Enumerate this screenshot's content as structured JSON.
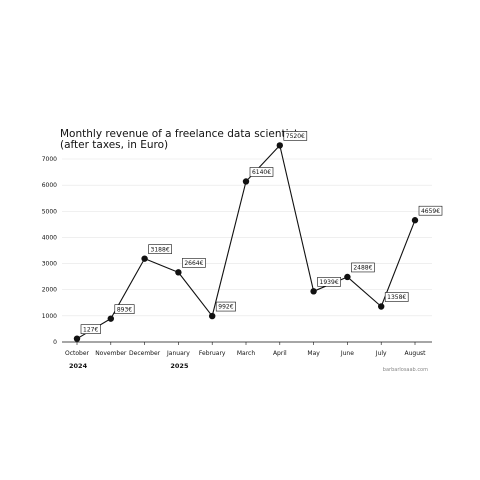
{
  "chart_data": {
    "type": "line",
    "title_lines": [
      "Monthly revenue of a freelance data scientist",
      "(after taxes, in Euro)"
    ],
    "categories": [
      "October",
      "November",
      "December",
      "January",
      "February",
      "March",
      "April",
      "May",
      "June",
      "July",
      "August"
    ],
    "values": [
      127,
      893,
      3188,
      2664,
      992,
      6140,
      7520,
      1939,
      2488,
      1358,
      4659
    ],
    "data_labels": [
      "127€",
      "893€",
      "3188€",
      "2664€",
      "992€",
      "6140€",
      "7520€",
      "1939€",
      "2488€",
      "1358€",
      "4659€"
    ],
    "year_labels": [
      {
        "year": "2024",
        "category": "October"
      },
      {
        "year": "2025",
        "category": "January"
      }
    ],
    "ylim": [
      0,
      7000
    ],
    "yticks": [
      0,
      1000,
      2000,
      3000,
      4000,
      5000,
      6000,
      7000
    ],
    "grid": true,
    "line_color": "#111111",
    "grid_color": "#e6e6e6",
    "credit": "barbarlosaab.com"
  }
}
